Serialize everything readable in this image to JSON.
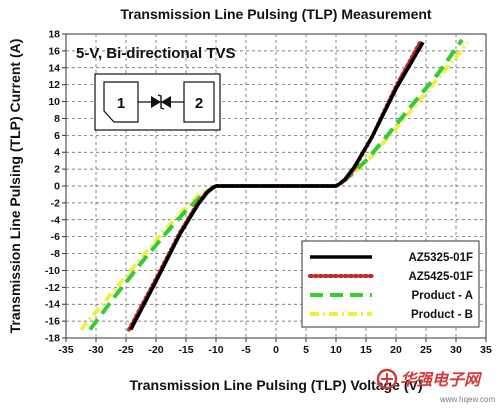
{
  "chart_data": {
    "type": "line",
    "title": "Transmission Line Pulsing (TLP) Measurement",
    "annotation": "5-V, Bi-directional TVS",
    "pins": [
      "1",
      "2"
    ],
    "xlabel": "Transmission Line Pulsing (TLP) Voltage (V)",
    "ylabel": "Transmission Line Pulsing (TLP) Current (A)",
    "xlim": [
      -35,
      35
    ],
    "ylim": [
      -18,
      18
    ],
    "xticks": [
      -35,
      -30,
      -25,
      -20,
      -15,
      -10,
      -5,
      0,
      5,
      10,
      15,
      20,
      25,
      30,
      35
    ],
    "yticks": [
      -18,
      -16,
      -14,
      -12,
      -10,
      -8,
      -6,
      -4,
      -2,
      0,
      2,
      4,
      6,
      8,
      10,
      12,
      14,
      16,
      18
    ],
    "grid": true,
    "legend_position": "lower-right",
    "series": [
      {
        "name": "AZ5325-01F",
        "color": "#000000",
        "style": "solid",
        "x": [
          -24.2,
          -20,
          -16,
          -13,
          -11.5,
          -10.5,
          -10,
          -5,
          0,
          5,
          10,
          10.5,
          11.5,
          13,
          16,
          20,
          24.5
        ],
        "y": [
          -17,
          -11.3,
          -5.7,
          -2.2,
          -0.8,
          -0.2,
          0,
          0,
          0,
          0,
          0,
          0.2,
          0.8,
          2.2,
          5.8,
          11.5,
          17
        ]
      },
      {
        "name": "AZ5425-01F",
        "color": "#c0282a",
        "style": "dotted",
        "x": [
          -24.5,
          -20,
          -16,
          -13,
          -11.5,
          -10.5,
          -10,
          -5,
          0,
          5,
          10,
          10.5,
          11.5,
          13,
          16,
          20,
          24
        ],
        "y": [
          -17,
          -11,
          -5.5,
          -2,
          -0.7,
          -0.2,
          0,
          0,
          0,
          0,
          0,
          0.2,
          0.7,
          2,
          5.8,
          11.8,
          17
        ]
      },
      {
        "name": "Product - A",
        "color": "#33cc33",
        "style": "dashed",
        "x": [
          -31,
          -27,
          -22,
          -18,
          -15,
          -12,
          -10.5,
          -10,
          -5,
          0,
          5,
          10,
          10.5,
          12,
          15,
          18,
          22,
          27,
          31
        ],
        "y": [
          -17,
          -13.2,
          -8.7,
          -5.3,
          -2.9,
          -0.9,
          -0.2,
          0,
          0,
          0,
          0,
          0,
          0.2,
          1,
          3,
          5.5,
          9,
          13.3,
          17.3
        ]
      },
      {
        "name": "Product - B",
        "color": "#f2ef3a",
        "style": "dash-dot",
        "x": [
          -32.5,
          -28,
          -23,
          -19,
          -15.5,
          -12.5,
          -10.5,
          -10,
          -5,
          0,
          5,
          10,
          10.5,
          12.5,
          16,
          20,
          24,
          28,
          32
        ],
        "y": [
          -17,
          -13.2,
          -9,
          -5.6,
          -2.9,
          -0.9,
          -0.2,
          0,
          0,
          0,
          0,
          0,
          0.2,
          1.2,
          3.6,
          6.8,
          10.2,
          13.6,
          17
        ]
      }
    ]
  },
  "watermark": {
    "brand": "华强电子网",
    "url": "www.hqew.com",
    "logo_color": "#d23b3b"
  }
}
